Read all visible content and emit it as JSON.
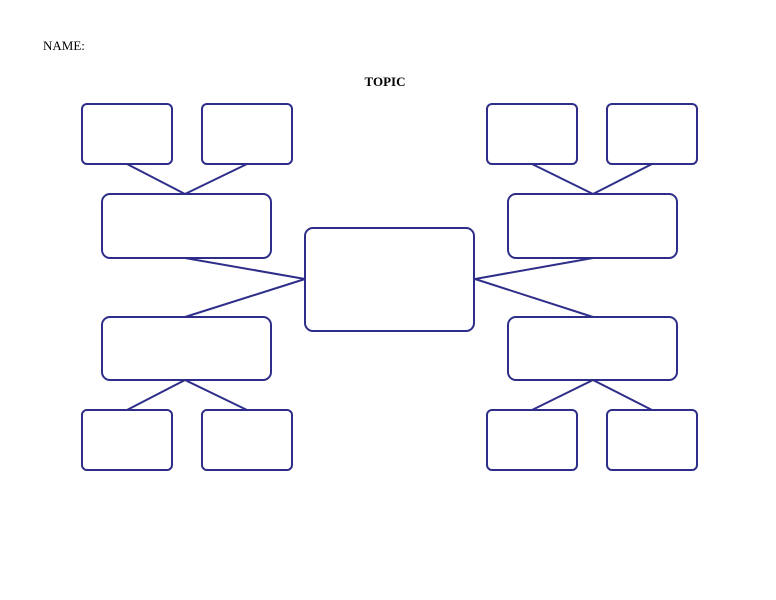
{
  "header": {
    "name_label": "NAME:",
    "topic_label": "TOPIC"
  },
  "diagram": {
    "stroke_color": "#2e2e8a",
    "fill_color": "#ffffff"
  }
}
